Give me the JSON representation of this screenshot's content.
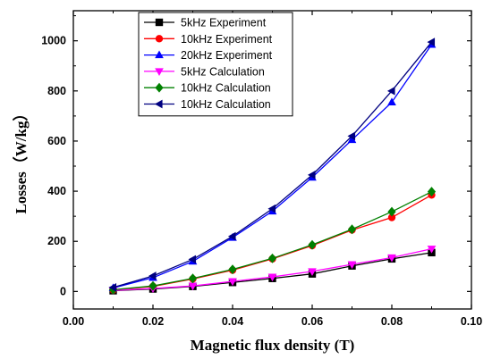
{
  "chart_data": {
    "type": "line",
    "xlabel": "Magnetic flux density (T)",
    "ylabel": "Losses（W/kg）",
    "xlim": [
      0.0,
      0.1
    ],
    "ylim": [
      -70,
      1120
    ],
    "x_ticks": [
      "0.00",
      "0.02",
      "0.04",
      "0.06",
      "0.08",
      "0.10"
    ],
    "x_tick_values": [
      0.0,
      0.02,
      0.04,
      0.06,
      0.08,
      0.1
    ],
    "y_ticks": [
      "0",
      "200",
      "400",
      "600",
      "800",
      "1000"
    ],
    "y_tick_values": [
      0,
      200,
      400,
      600,
      800,
      1000
    ],
    "grid": false,
    "legend_position": "top-center",
    "x": [
      0.01,
      0.02,
      0.03,
      0.04,
      0.05,
      0.06,
      0.07,
      0.08,
      0.09
    ],
    "series": [
      {
        "name": "5kHz Experiment",
        "color": "#000000",
        "marker": "square",
        "values": [
          3,
          10,
          20,
          36,
          52,
          70,
          102,
          130,
          155
        ]
      },
      {
        "name": "10kHz Experiment",
        "color": "#ff0000",
        "marker": "circle",
        "values": [
          6,
          20,
          50,
          85,
          130,
          183,
          245,
          295,
          385
        ]
      },
      {
        "name": "20kHz Experiment",
        "color": "#0000ff",
        "marker": "triangle-up",
        "values": [
          14,
          55,
          120,
          215,
          320,
          455,
          605,
          755,
          985
        ]
      },
      {
        "name": "5kHz Calculation",
        "color": "#ff00ff",
        "marker": "triangle-down",
        "values": [
          4,
          12,
          22,
          40,
          58,
          80,
          108,
          135,
          170
        ]
      },
      {
        "name": "10kHz Calculation",
        "color": "#008000",
        "marker": "diamond",
        "values": [
          7,
          22,
          52,
          88,
          132,
          186,
          248,
          318,
          398
        ]
      },
      {
        "name": "10kHz Calculation",
        "color": "#000080",
        "marker": "triangle-left",
        "values": [
          16,
          62,
          128,
          220,
          330,
          465,
          620,
          800,
          995
        ]
      }
    ]
  }
}
